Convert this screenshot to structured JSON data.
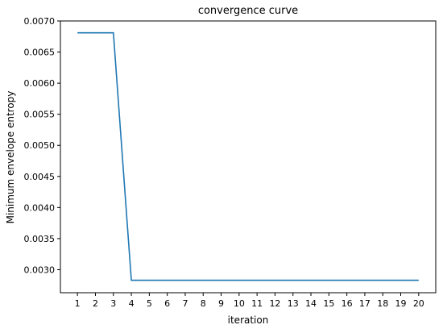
{
  "chart_data": {
    "type": "line",
    "title": "convergence curve",
    "xlabel": "iteration",
    "ylabel": "Minimum envelope entropy",
    "x": [
      1,
      2,
      3,
      4,
      5,
      6,
      7,
      8,
      9,
      10,
      11,
      12,
      13,
      14,
      15,
      16,
      17,
      18,
      19,
      20
    ],
    "series": [
      {
        "values": [
          0.00681,
          0.00681,
          0.00681,
          0.00283,
          0.00283,
          0.00283,
          0.00283,
          0.00283,
          0.00283,
          0.00283,
          0.00283,
          0.00283,
          0.00283,
          0.00283,
          0.00283,
          0.00283,
          0.00283,
          0.00283,
          0.00283,
          0.00283
        ],
        "color": "#1f77b4"
      }
    ],
    "x_ticks": [
      "1",
      "2",
      "3",
      "4",
      "5",
      "6",
      "7",
      "8",
      "9",
      "10",
      "11",
      "12",
      "13",
      "14",
      "15",
      "16",
      "17",
      "18",
      "19",
      "20"
    ],
    "y_ticks": [
      "0.0030",
      "0.0035",
      "0.0040",
      "0.0045",
      "0.0050",
      "0.0055",
      "0.0060",
      "0.0065",
      "0.0070"
    ],
    "xlim": [
      0.05,
      20.95
    ],
    "ylim": [
      0.00263,
      0.007
    ],
    "grid": false,
    "legend": "none"
  }
}
